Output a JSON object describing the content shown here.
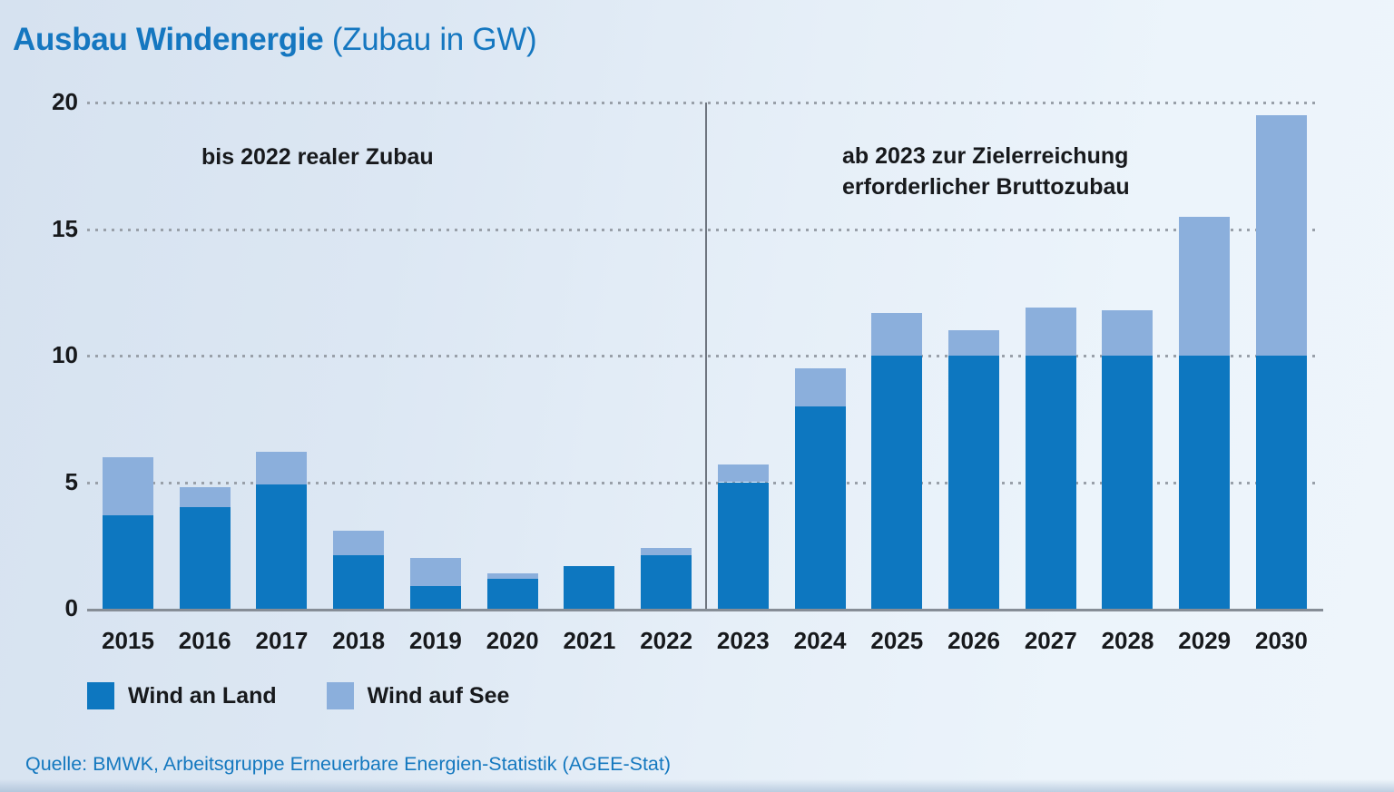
{
  "title": {
    "main": "Ausbau Windenergie",
    "suffix": " (Zubau in GW)"
  },
  "annotations": {
    "left": "bis 2022 realer Zubau",
    "right_line1": "ab 2023 zur Zielerreichung",
    "right_line2": "erforderlicher Bruttozubau"
  },
  "legend": {
    "items": [
      {
        "label": "Wind an Land",
        "color": "#0d77c0"
      },
      {
        "label": "Wind auf See",
        "color": "#8bafdc"
      }
    ]
  },
  "source": "Quelle: BMWK, Arbeitsgruppe Erneuerbare Energien-Statistik (AGEE-Stat)",
  "colors": {
    "title_blue": "#1577c0",
    "onshore_bar": "#0d77c0",
    "offshore_bar": "#8bafdc",
    "grid_dot_gray": "#99a0a9",
    "axis_gray": "#868d96",
    "divider_gray": "#6e757f",
    "text_black": "#17191c",
    "background_left": "#d6e2f0",
    "background_right": "#eef5fb"
  },
  "chart_data": {
    "type": "bar",
    "stacked": true,
    "title": "Ausbau Windenergie (Zubau in GW)",
    "xlabel": "",
    "ylabel": "GW",
    "ylim": [
      0,
      20
    ],
    "yticks": [
      0,
      5,
      10,
      15,
      20
    ],
    "grid": "horizontal dotted at 5, 10, 15, 20",
    "legend_position": "bottom-left",
    "divider_between_categories": [
      "2022",
      "2023"
    ],
    "section_left_label": "bis 2022 realer Zubau",
    "section_right_label": "ab 2023 zur Zielerreichung erforderlicher Bruttozubau",
    "categories": [
      "2015",
      "2016",
      "2017",
      "2018",
      "2019",
      "2020",
      "2021",
      "2022",
      "2023",
      "2024",
      "2025",
      "2026",
      "2027",
      "2028",
      "2029",
      "2030"
    ],
    "series": [
      {
        "name": "Wind an Land",
        "color": "#0d77c0",
        "values": [
          3.7,
          4.0,
          4.9,
          2.1,
          0.9,
          1.2,
          1.7,
          2.1,
          5.0,
          8.0,
          10.0,
          10.0,
          10.0,
          10.0,
          10.0,
          10.0
        ]
      },
      {
        "name": "Wind auf See",
        "color": "#8bafdc",
        "values": [
          2.3,
          0.8,
          1.3,
          1.0,
          1.1,
          0.2,
          0.0,
          0.3,
          0.7,
          1.5,
          1.7,
          1.0,
          1.9,
          1.8,
          5.5,
          9.5
        ]
      }
    ],
    "totals": [
      6.0,
      4.8,
      6.2,
      3.1,
      2.0,
      1.4,
      1.7,
      2.4,
      5.7,
      9.5,
      11.7,
      11.0,
      11.9,
      11.8,
      15.5,
      19.5
    ]
  }
}
